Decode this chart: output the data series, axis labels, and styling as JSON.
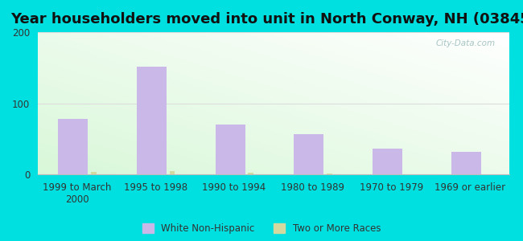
{
  "title": "Year householders moved into unit in North Conway, NH (03845)",
  "categories": [
    "1999 to March\n2000",
    "1995 to 1998",
    "1990 to 1994",
    "1980 to 1989",
    "1970 to 1979",
    "1969 or earlier"
  ],
  "white_non_hispanic": [
    78,
    152,
    70,
    57,
    37,
    32
  ],
  "two_or_more_races": [
    4,
    5,
    3,
    2,
    0,
    0
  ],
  "bar_color_white": "#c9b8e8",
  "bar_color_two": "#d4d9a0",
  "ylim": [
    0,
    200
  ],
  "yticks": [
    0,
    100,
    200
  ],
  "background_outer": "#00e0e0",
  "legend_label_white": "White Non-Hispanic",
  "legend_label_two": "Two or More Races",
  "title_fontsize": 13,
  "axis_fontsize": 8.5,
  "watermark": "City-Data.com"
}
